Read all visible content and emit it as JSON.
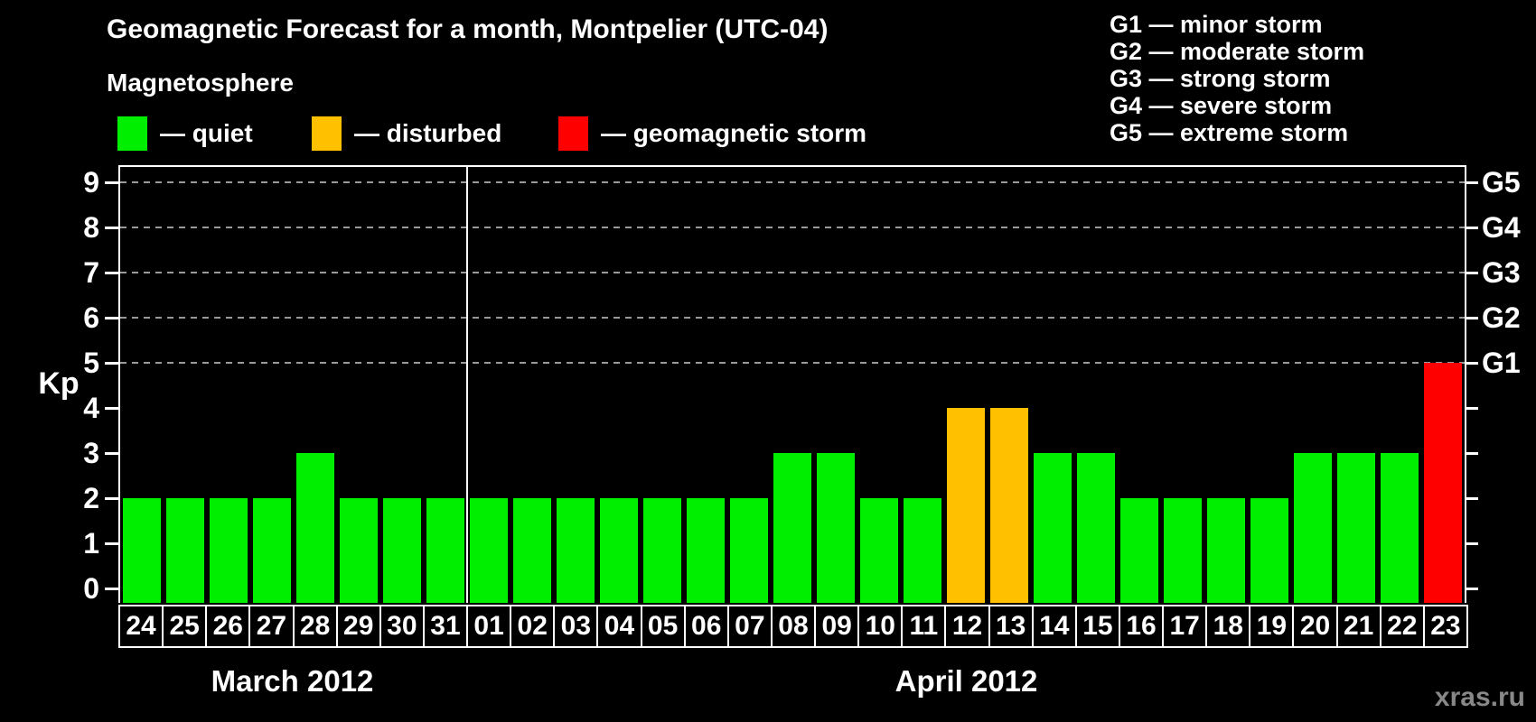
{
  "header": {
    "title": "Geomagnetic Forecast for a month, Montpelier (UTC-04)",
    "subtitle": "Magnetosphere"
  },
  "legend": {
    "items": [
      {
        "key": "quiet",
        "label": "— quiet",
        "color": "#00ee00"
      },
      {
        "key": "disturbed",
        "label": "— disturbed",
        "color": "#ffc000"
      },
      {
        "key": "storm",
        "label": "— geomagnetic storm",
        "color": "#ff0000"
      }
    ]
  },
  "g_legend": {
    "items": [
      "G1 — minor storm",
      "G2 — moderate storm",
      "G3 — strong storm",
      "G4 — severe storm",
      "G5 — extreme storm"
    ]
  },
  "chart_data": {
    "type": "bar",
    "title": "Geomagnetic Forecast for a month, Montpelier (UTC-04)",
    "xlabel": "",
    "ylabel": "Kp",
    "ylim": [
      0,
      9.4
    ],
    "y_ticks": [
      0,
      1,
      2,
      3,
      4,
      5,
      6,
      7,
      8,
      9
    ],
    "grid_kp": [
      5,
      6,
      7,
      8,
      9
    ],
    "grid_style": "dashed",
    "legend_position": "top",
    "right_axis": [
      {
        "label": "G1",
        "kp": 5
      },
      {
        "label": "G2",
        "kp": 6
      },
      {
        "label": "G3",
        "kp": 7
      },
      {
        "label": "G4",
        "kp": 8
      },
      {
        "label": "G5",
        "kp": 9
      }
    ],
    "months": [
      {
        "label": "March 2012",
        "days": [
          "24",
          "25",
          "26",
          "27",
          "28",
          "29",
          "30",
          "31"
        ],
        "values": [
          2,
          2,
          2,
          2,
          3,
          2,
          2,
          2
        ]
      },
      {
        "label": "April 2012",
        "days": [
          "01",
          "02",
          "03",
          "04",
          "05",
          "06",
          "07",
          "08",
          "09",
          "10",
          "11",
          "12",
          "13",
          "14",
          "15",
          "16",
          "17",
          "18",
          "19",
          "20",
          "21",
          "22",
          "23"
        ],
        "values": [
          2,
          2,
          2,
          2,
          2,
          2,
          2,
          3,
          3,
          2,
          2,
          4,
          4,
          3,
          3,
          2,
          2,
          2,
          2,
          3,
          3,
          3,
          5
        ]
      }
    ],
    "colors": {
      "quiet": "#00ee00",
      "disturbed": "#ffc000",
      "storm": "#ff0000"
    },
    "color_rule": {
      "quiet_max": 3,
      "disturbed_max": 4
    }
  },
  "footer": {
    "watermark": "xras.ru"
  }
}
